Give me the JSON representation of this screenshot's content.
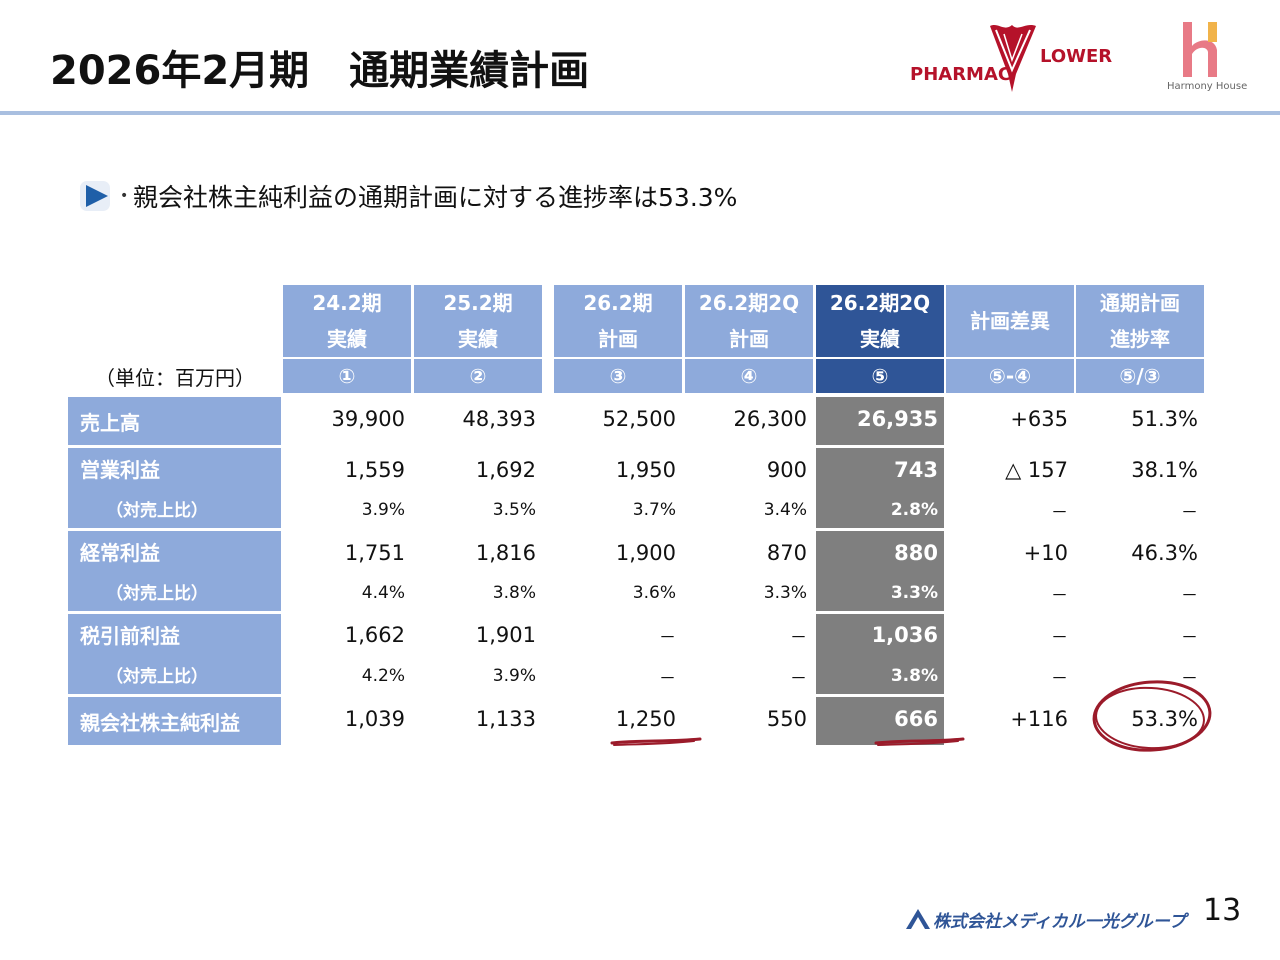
{
  "title": "2026年2月期　通期業績計画",
  "logos": {
    "pharmacy_flower_left": "PHARMAC",
    "pharmacy_flower_right": "LOWER",
    "harmony_house": "Harmony House"
  },
  "bullet": "親会社株主純利益の通期計画に対する進捗率は53.3%",
  "table": {
    "unit": "（単位：百万円）",
    "headers": [
      {
        "line1": "24.2期",
        "line2": "実績",
        "num": "①"
      },
      {
        "line1": "25.2期",
        "line2": "実績",
        "num": "②"
      },
      {
        "line1": "26.2期",
        "line2": "計画",
        "num": "③"
      },
      {
        "line1": "26.2期2Q",
        "line2": "計画",
        "num": "④"
      },
      {
        "line1": "26.2期2Q",
        "line2": "実績",
        "num": "⑤"
      },
      {
        "line1": "計画差異",
        "line2": "",
        "num": "⑤-④"
      },
      {
        "line1": "通期計画",
        "line2": "進捗率",
        "num": "⑤/③"
      }
    ],
    "rows": [
      {
        "label": "売上高",
        "values": [
          "39,900",
          "48,393",
          "52,500",
          "26,300",
          "26,935",
          "+635",
          "51.3%"
        ]
      },
      {
        "label": "営業利益",
        "values": [
          "1,559",
          "1,692",
          "1,950",
          "900",
          "743",
          "△ 157",
          "38.1%"
        ]
      },
      {
        "label": "（対売上比）",
        "values": [
          "3.9%",
          "3.5%",
          "3.7%",
          "3.4%",
          "2.8%",
          "－",
          "－"
        ]
      },
      {
        "label": "経常利益",
        "values": [
          "1,751",
          "1,816",
          "1,900",
          "870",
          "880",
          "+10",
          "46.3%"
        ]
      },
      {
        "label": "（対売上比）",
        "values": [
          "4.4%",
          "3.8%",
          "3.6%",
          "3.3%",
          "3.3%",
          "－",
          "－"
        ]
      },
      {
        "label": "税引前利益",
        "values": [
          "1,662",
          "1,901",
          "－",
          "－",
          "1,036",
          "－",
          "－"
        ]
      },
      {
        "label": "（対売上比）",
        "values": [
          "4.2%",
          "3.9%",
          "－",
          "－",
          "3.8%",
          "－",
          "－"
        ]
      },
      {
        "label": "親会社株主純利益",
        "values": [
          "1,039",
          "1,133",
          "1,250",
          "550",
          "666",
          "+116",
          "53.3%"
        ]
      }
    ]
  },
  "page_number": "13",
  "footer_company": "株式会社メディカル一光グループ",
  "colors": {
    "header_blue": "#8eaadb",
    "header_dark": "#2f5597",
    "highlight_gray": "#7f7f7f",
    "annotation_red": "#9b1b2a"
  }
}
